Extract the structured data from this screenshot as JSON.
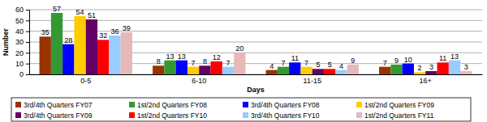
{
  "chart_data": {
    "type": "bar",
    "x_label": "Days",
    "y_label": "Number",
    "categories": [
      "0-5",
      "6-10",
      "11-15",
      "16+"
    ],
    "series": [
      {
        "name": "3rd/4th Quarters FY07",
        "color": "#993300",
        "values": [
          35,
          8,
          4,
          7
        ]
      },
      {
        "name": "1st/2nd Quarters FY08",
        "color": "#339933",
        "values": [
          57,
          13,
          7,
          9
        ]
      },
      {
        "name": "3rd/4th Quarters FY08",
        "color": "#0000ff",
        "values": [
          28,
          13,
          11,
          10
        ]
      },
      {
        "name": "1st/2nd Quarters FY09",
        "color": "#ffcc00",
        "values": [
          54,
          7,
          7,
          2
        ]
      },
      {
        "name": "3rd/4th Quarters FY09",
        "color": "#660066",
        "values": [
          51,
          8,
          5,
          3
        ]
      },
      {
        "name": "1st/2nd Quarters FY10",
        "color": "#ff0000",
        "values": [
          32,
          12,
          5,
          11
        ]
      },
      {
        "name": "3rd/4th Quarters FY10",
        "color": "#99ccff",
        "values": [
          36,
          7,
          4,
          13
        ]
      },
      {
        "name": "1st/2nd Quarters FY11",
        "color": "#e6b9b8",
        "values": [
          39,
          20,
          9,
          3
        ]
      }
    ],
    "ylim": [
      0,
      60
    ],
    "yticks": [
      0,
      10,
      20,
      30,
      40,
      50,
      60
    ],
    "grid": true,
    "data_labels": true,
    "legend": "bottom"
  }
}
